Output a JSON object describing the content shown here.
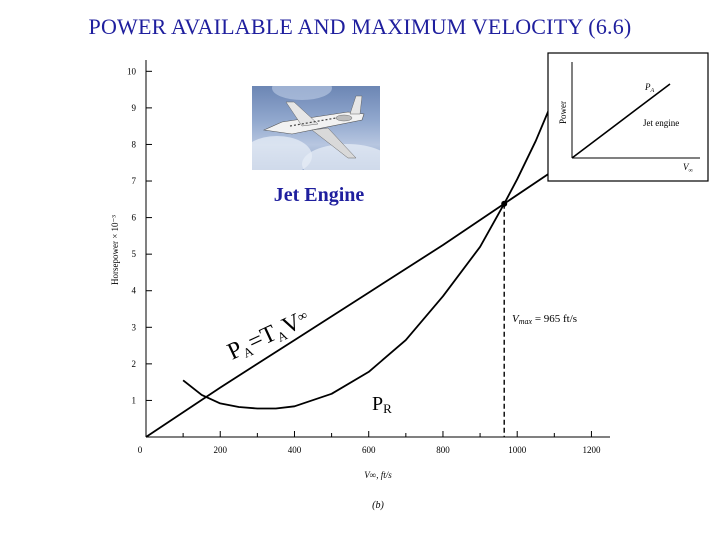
{
  "title": "POWER AVAILABLE AND MAXIMUM VELOCITY (6.6)",
  "jet_engine_label": "Jet Engine",
  "curve_labels": {
    "pa_main": "P",
    "pa_sub": "A",
    "pa_rest": "=T",
    "ta_sub": "A",
    "v_main": "V",
    "v_sub": "∞",
    "pr_main": "P",
    "pr_sub": "R"
  },
  "vmax_annotation": {
    "v": "V",
    "sub": "max",
    "rest": " = 965 ft/s"
  },
  "figure_label": "(b)",
  "inset": {
    "ylabel": "Power",
    "curve_label_main": "P",
    "curve_label_sub": "A",
    "engine_label": "Jet engine",
    "xlabel_main": "V",
    "xlabel_sub": "∞"
  },
  "icons": {
    "aircraft_photo": "business-jet-photo-icon"
  },
  "colors": {
    "title": "#1f1f9e",
    "curve": "#000000",
    "background": "#ffffff"
  },
  "chart_data": {
    "type": "line",
    "title": "",
    "xlabel": "V∞, ft/s",
    "ylabel": "Horsepower × 10⁻³",
    "xlim": [
      0,
      1250
    ],
    "ylim": [
      0,
      10.2
    ],
    "xticks": [
      "0",
      "200",
      "400",
      "600",
      "800",
      "1000",
      "1200"
    ],
    "yticks": [
      "1",
      "2",
      "3",
      "4",
      "5",
      "6",
      "7",
      "8",
      "9",
      "10"
    ],
    "series": [
      {
        "name": "PA = TA V∞",
        "x": [
          0,
          200,
          400,
          600,
          800,
          965,
          1100
        ],
        "y": [
          0,
          1.35,
          2.65,
          3.95,
          5.25,
          6.38,
          7.3
        ]
      },
      {
        "name": "PR",
        "x": [
          100,
          150,
          200,
          250,
          300,
          350,
          400,
          500,
          600,
          700,
          800,
          900,
          965,
          1000,
          1050,
          1100
        ],
        "y": [
          1.55,
          1.15,
          0.92,
          0.82,
          0.78,
          0.78,
          0.84,
          1.18,
          1.78,
          2.65,
          3.85,
          5.2,
          6.38,
          7.05,
          8.1,
          9.3
        ]
      }
    ],
    "annotations": [
      {
        "text": "Vmax = 965 ft/s",
        "x": 965,
        "y": 6.38
      }
    ],
    "grid": false
  }
}
